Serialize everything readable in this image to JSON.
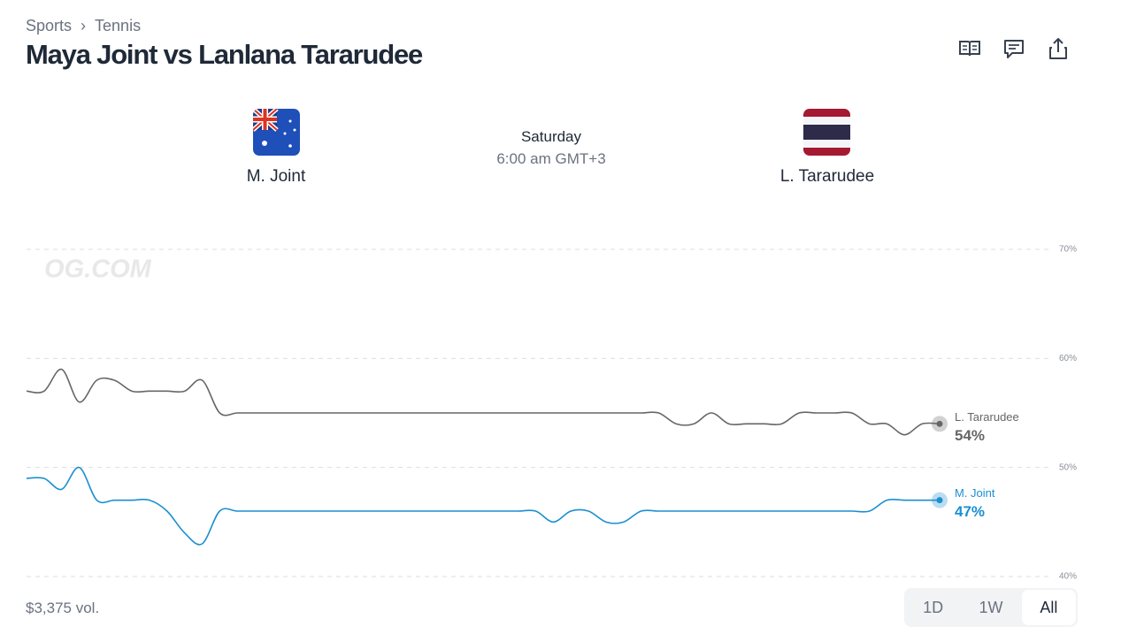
{
  "breadcrumb": [
    "Sports",
    "Tennis"
  ],
  "title": "Maya Joint vs Lanlana Tararudee",
  "match": {
    "player1": "M. Joint",
    "player2": "L. Tararudee",
    "day": "Saturday",
    "time": "6:00 am GMT+3"
  },
  "chart_data": {
    "type": "line",
    "watermark": "OG.COM",
    "categories": [
      null,
      null,
      null,
      null,
      null,
      null,
      null,
      null,
      null,
      null,
      null,
      null,
      null,
      null,
      null,
      null,
      null,
      null,
      null,
      null,
      null,
      null,
      null,
      null,
      null,
      null,
      null,
      null,
      null,
      null,
      null,
      null,
      null,
      null,
      null,
      null,
      null,
      null,
      null,
      null,
      null,
      null,
      null,
      null,
      null,
      null,
      null,
      null,
      null,
      null,
      null,
      null,
      null
    ],
    "series": [
      {
        "name": "L. Tararudee",
        "color": "#666666",
        "values": [
          57,
          57,
          59,
          56,
          58,
          58,
          57,
          57,
          57,
          57,
          58,
          55,
          55,
          55,
          55,
          55,
          55,
          55,
          55,
          55,
          55,
          55,
          55,
          55,
          55,
          55,
          55,
          55,
          55,
          55,
          55,
          55,
          55,
          55,
          55,
          55,
          55,
          54,
          54,
          55,
          54,
          54,
          54,
          54,
          55,
          55,
          55,
          55,
          54,
          54,
          53,
          54,
          54
        ],
        "value_labels": [
          null,
          null,
          null,
          null,
          null,
          null,
          null,
          null,
          null,
          null,
          null,
          null,
          null,
          null,
          null,
          null,
          null,
          null,
          null,
          null,
          null,
          null,
          null,
          null,
          null,
          null,
          null,
          null,
          null,
          null,
          null,
          null,
          null,
          null,
          null,
          null,
          null,
          null,
          null,
          null,
          null,
          null,
          null,
          null,
          null,
          null,
          null,
          null,
          null,
          null,
          null,
          null,
          "54%"
        ]
      },
      {
        "name": "M. Joint",
        "color": "#1a8fd1",
        "values": [
          49,
          49,
          48,
          50,
          47,
          47,
          47,
          47,
          46,
          44,
          43,
          46,
          46,
          46,
          46,
          46,
          46,
          46,
          46,
          46,
          46,
          46,
          46,
          46,
          46,
          46,
          46,
          46,
          46,
          46,
          45,
          46,
          46,
          45,
          45,
          46,
          46,
          46,
          46,
          46,
          46,
          46,
          46,
          46,
          46,
          46,
          46,
          46,
          46,
          47,
          47,
          47,
          47
        ],
        "value_labels": [
          null,
          null,
          null,
          null,
          null,
          null,
          null,
          null,
          null,
          null,
          null,
          null,
          null,
          null,
          null,
          null,
          null,
          null,
          null,
          null,
          null,
          null,
          null,
          null,
          null,
          null,
          null,
          null,
          null,
          null,
          null,
          null,
          null,
          null,
          null,
          null,
          null,
          null,
          null,
          null,
          null,
          null,
          null,
          null,
          null,
          null,
          null,
          null,
          null,
          null,
          null,
          null,
          "47%"
        ]
      }
    ],
    "ylim": [
      40,
      70
    ],
    "yticks": [
      {
        "value": 40,
        "label": "40%"
      },
      {
        "value": 50,
        "label": "50%"
      },
      {
        "value": 60,
        "label": "60%"
      },
      {
        "value": 70,
        "label": "70%"
      }
    ],
    "grid": true
  },
  "footer": {
    "volume": "$3,375 vol.",
    "ranges": [
      "1D",
      "1W",
      "All"
    ],
    "selected_range": "All"
  }
}
